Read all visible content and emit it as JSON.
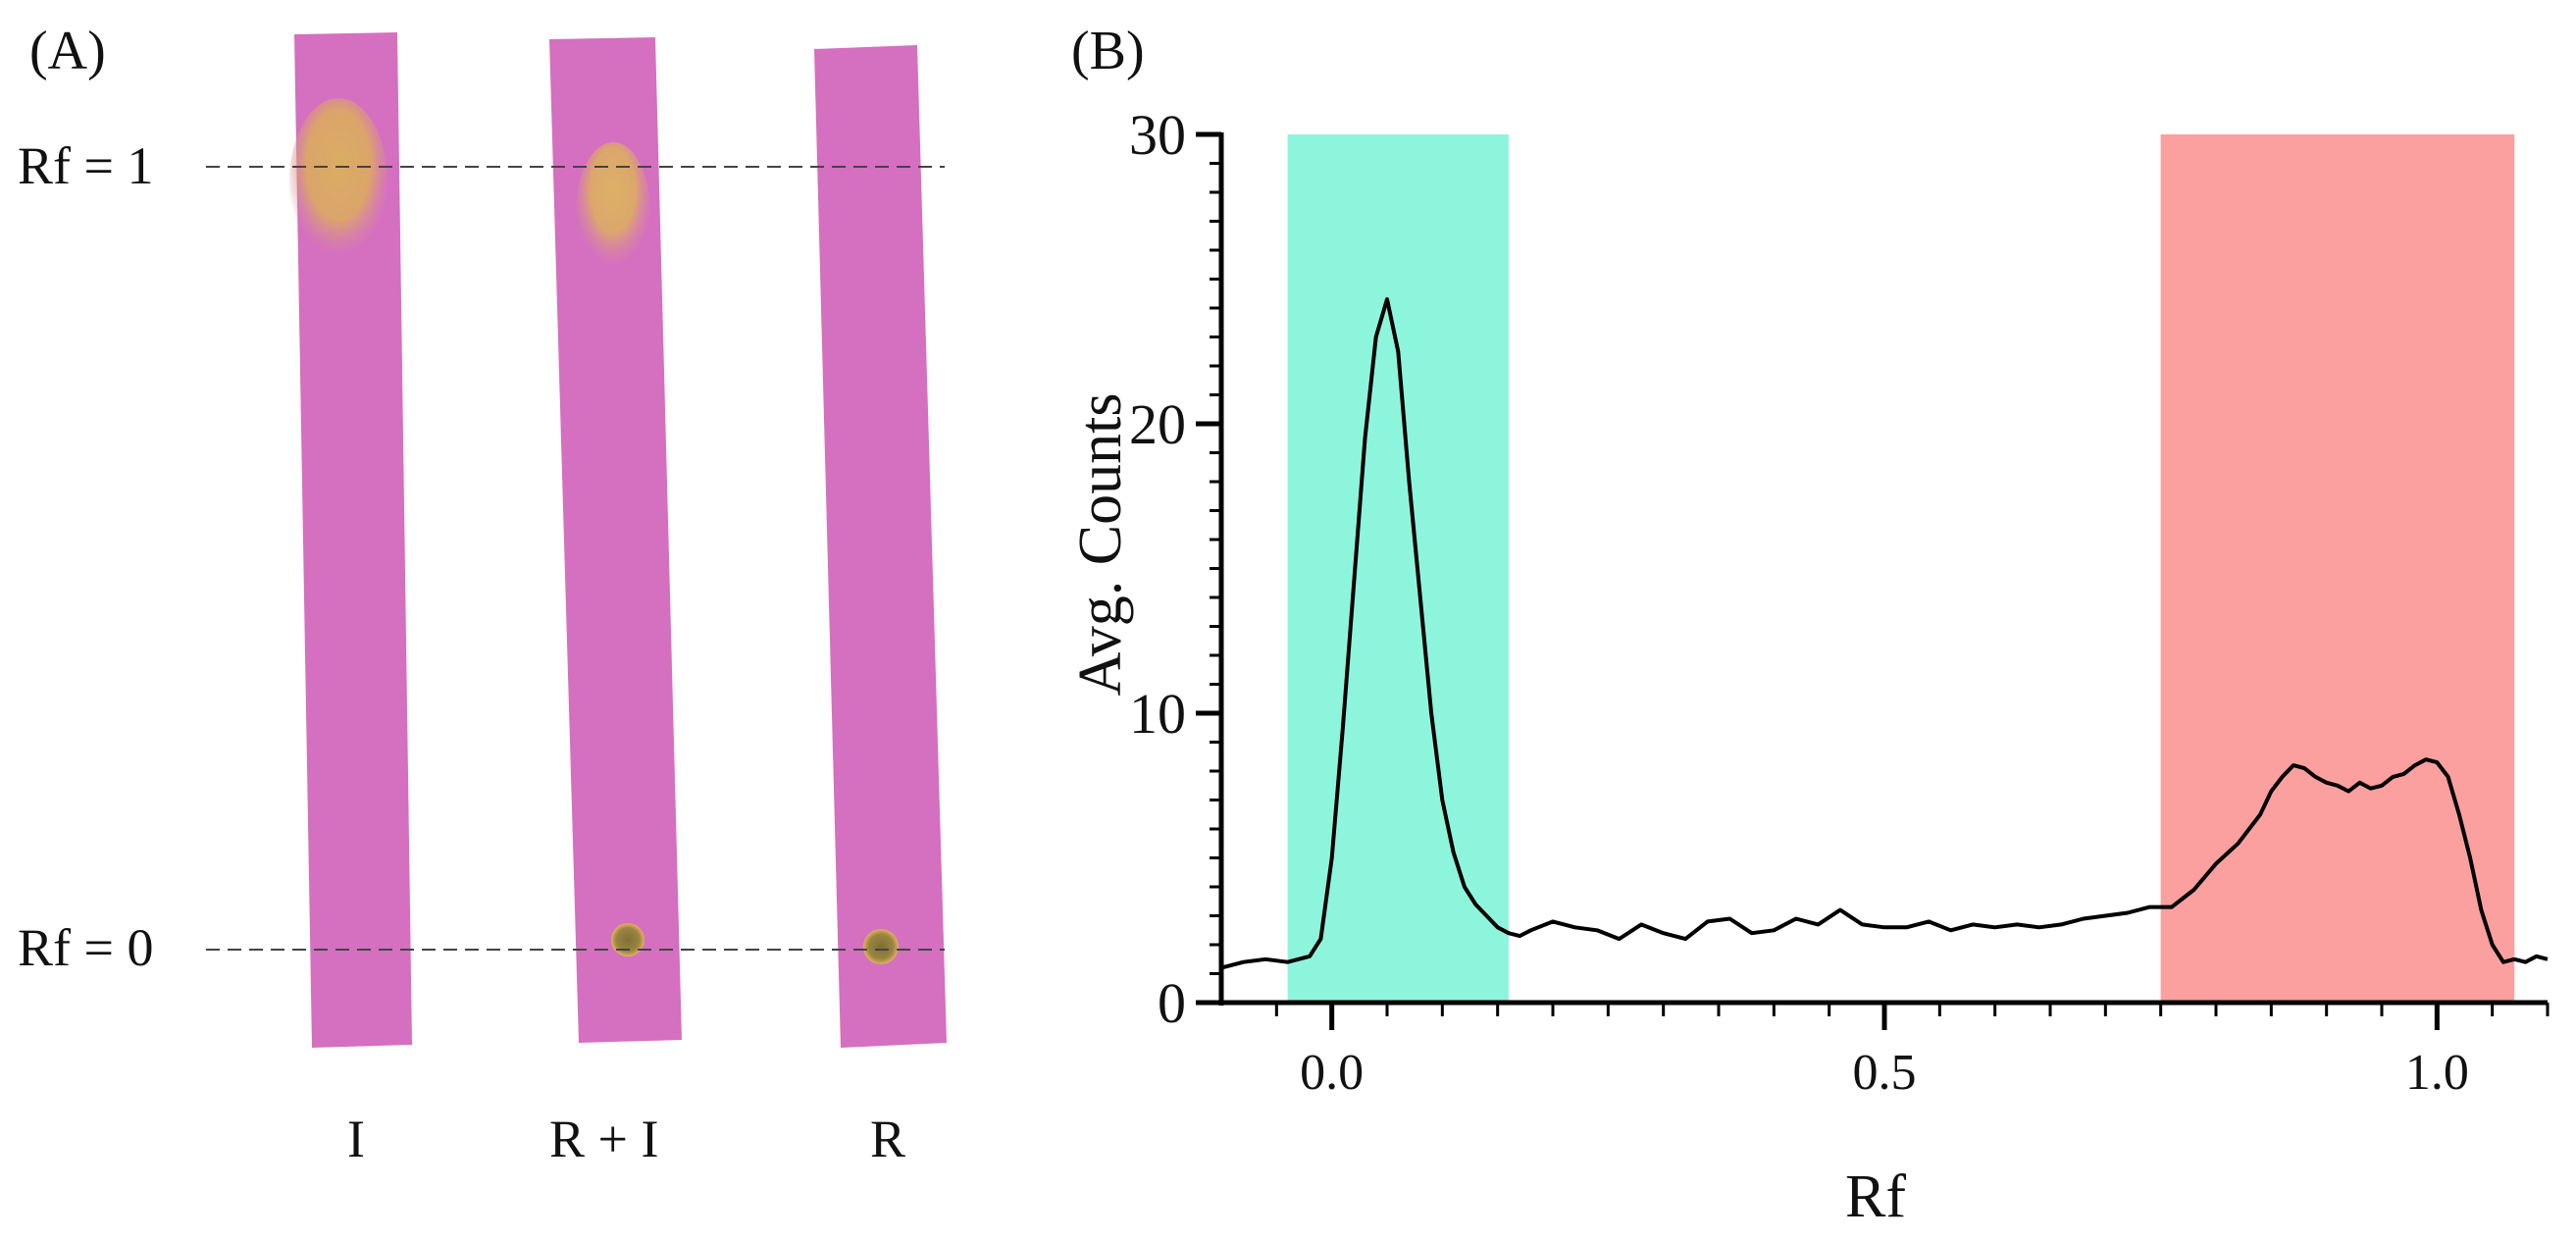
{
  "panel_a": {
    "label": "(A)",
    "rf_top_label": "Rf = 1",
    "rf_bottom_label": "Rf = 0",
    "lanes": [
      {
        "label": "I",
        "has_origin_spot": false,
        "has_front_stain": true
      },
      {
        "label": "R + I",
        "has_origin_spot": true,
        "has_front_stain": true
      },
      {
        "label": "R",
        "has_origin_spot": true,
        "has_front_stain": false
      }
    ],
    "colors": {
      "strip": "#d46cc0",
      "stain": "#d9a860",
      "spot": "#8e7a3c"
    }
  },
  "panel_b": {
    "label": "(B)"
  },
  "chart_data": {
    "type": "line",
    "title": "",
    "xlabel": "Rf",
    "ylabel": "Avg. Counts",
    "xlim": [
      -0.1,
      1.1
    ],
    "ylim": [
      0,
      30
    ],
    "xticks": [
      0.0,
      0.5,
      1.0
    ],
    "xtick_labels": [
      "0.0",
      "0.5",
      "1.0"
    ],
    "yticks": [
      0,
      10,
      20,
      30
    ],
    "ytick_labels": [
      "0",
      "10",
      "20",
      "30"
    ],
    "y_minor_step": 1,
    "x_minor_step": 0.05,
    "grid": false,
    "regions": [
      {
        "name": "origin-region",
        "x0": -0.04,
        "x1": 0.16,
        "color": "#8ef5dd"
      },
      {
        "name": "front-region",
        "x0": 0.75,
        "x1": 1.07,
        "color": "#fba09e"
      }
    ],
    "series": [
      {
        "name": "Avg. Counts",
        "color": "#000000",
        "x": [
          -0.1,
          -0.08,
          -0.06,
          -0.04,
          -0.02,
          -0.01,
          0.0,
          0.01,
          0.02,
          0.03,
          0.04,
          0.05,
          0.06,
          0.07,
          0.08,
          0.09,
          0.1,
          0.11,
          0.12,
          0.13,
          0.14,
          0.15,
          0.16,
          0.17,
          0.18,
          0.2,
          0.22,
          0.24,
          0.26,
          0.28,
          0.3,
          0.32,
          0.34,
          0.36,
          0.38,
          0.4,
          0.42,
          0.44,
          0.46,
          0.48,
          0.5,
          0.52,
          0.54,
          0.56,
          0.58,
          0.6,
          0.62,
          0.64,
          0.66,
          0.68,
          0.7,
          0.72,
          0.74,
          0.76,
          0.78,
          0.8,
          0.82,
          0.84,
          0.85,
          0.86,
          0.87,
          0.88,
          0.89,
          0.9,
          0.91,
          0.92,
          0.93,
          0.94,
          0.95,
          0.96,
          0.97,
          0.98,
          0.99,
          1.0,
          1.01,
          1.02,
          1.03,
          1.04,
          1.05,
          1.06,
          1.07,
          1.08,
          1.09,
          1.1
        ],
        "y": [
          1.2,
          1.4,
          1.5,
          1.4,
          1.6,
          2.2,
          5.0,
          9.5,
          14.5,
          19.5,
          23.0,
          24.3,
          22.5,
          18.0,
          14.0,
          10.0,
          7.0,
          5.2,
          4.0,
          3.4,
          3.0,
          2.6,
          2.4,
          2.3,
          2.5,
          2.8,
          2.6,
          2.5,
          2.2,
          2.7,
          2.4,
          2.2,
          2.8,
          2.9,
          2.4,
          2.5,
          2.9,
          2.7,
          3.2,
          2.7,
          2.6,
          2.6,
          2.8,
          2.5,
          2.7,
          2.6,
          2.7,
          2.6,
          2.7,
          2.9,
          3.0,
          3.1,
          3.3,
          3.3,
          3.9,
          4.8,
          5.5,
          6.5,
          7.3,
          7.8,
          8.2,
          8.1,
          7.8,
          7.6,
          7.5,
          7.3,
          7.6,
          7.4,
          7.5,
          7.8,
          7.9,
          8.2,
          8.4,
          8.3,
          7.8,
          6.5,
          5.0,
          3.2,
          2.0,
          1.4,
          1.5,
          1.4,
          1.6,
          1.5
        ]
      }
    ]
  }
}
